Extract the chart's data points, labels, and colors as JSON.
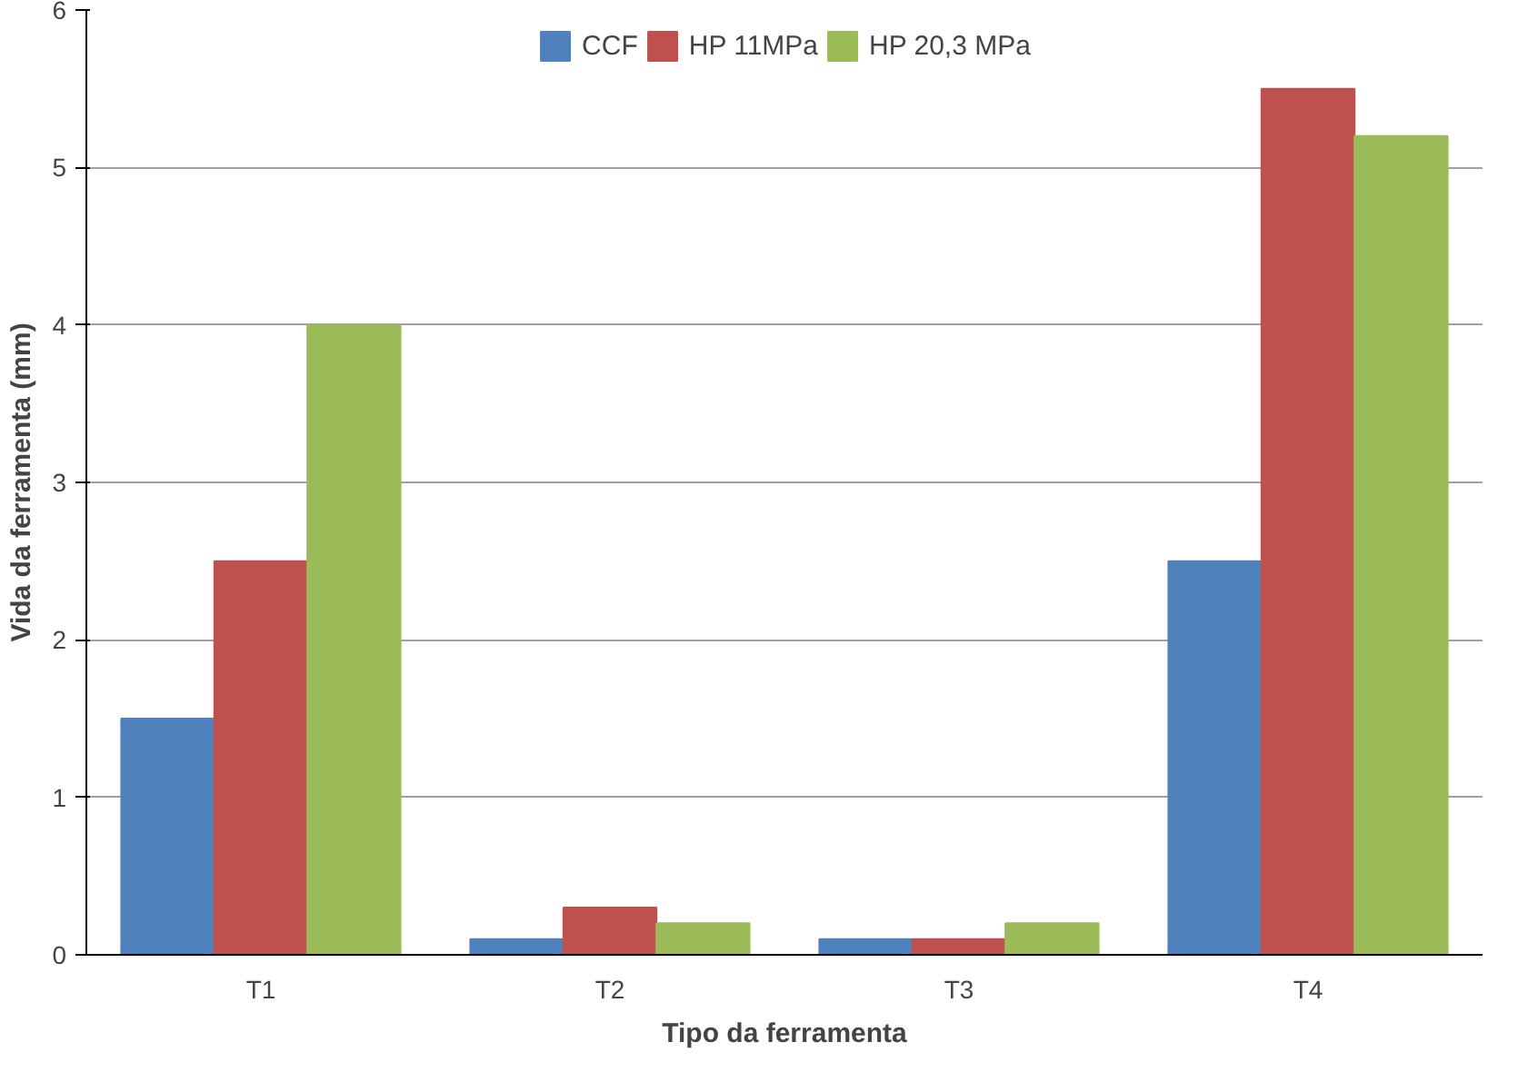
{
  "chart_data": {
    "type": "bar",
    "xlabel": "Tipo da ferramenta",
    "ylabel": "Vida da ferramenta (mm)",
    "categories": [
      "T1",
      "T2",
      "T3",
      "T4"
    ],
    "series": [
      {
        "name": "CCF",
        "color": "#4f81bd",
        "values": [
          1.5,
          0.1,
          0.1,
          2.5
        ]
      },
      {
        "name": "HP 11MPa",
        "color": "#c0504d",
        "values": [
          2.5,
          0.3,
          0.1,
          5.5
        ]
      },
      {
        "name": "HP 20,3 MPa",
        "color": "#9bbb59",
        "values": [
          4.0,
          0.2,
          0.2,
          5.2
        ]
      }
    ],
    "ylim": [
      0,
      6
    ],
    "yticks": [
      0,
      1,
      2,
      3,
      4,
      5,
      6
    ],
    "grid": "y",
    "legend": "top"
  }
}
